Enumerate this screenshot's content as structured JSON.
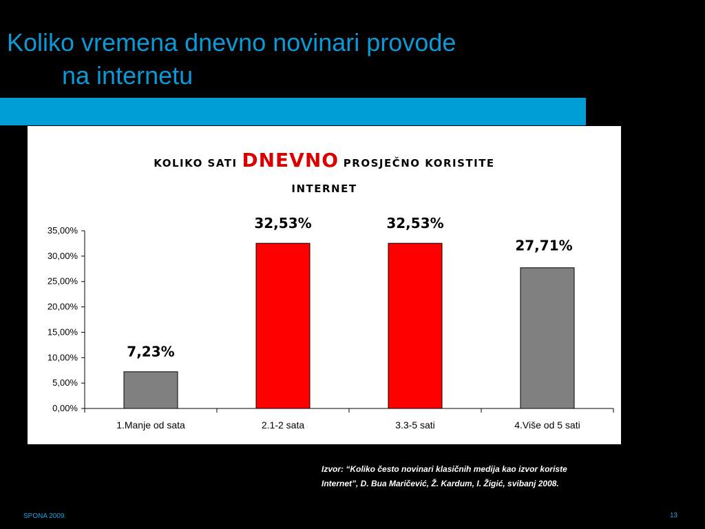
{
  "slide": {
    "title_line1": "Koliko vremena dnevno novinari provode",
    "title_line2": "na internetu",
    "source_line1": "Izvor: “Koliko često novinari klasičnih medija kao izvor koriste",
    "source_line2": "Internet”, D. Bua Maričević, Ž. Kardum, I. Žigić, svibanj 2008.",
    "footer_left": "SPONA 2009.",
    "page_number": "13"
  },
  "colors": {
    "title": "#0a9ad8",
    "accent_bar": "#009ed6",
    "gray_bar": "#808080",
    "red_bar": "#ff0000",
    "title_highlight": "#d80000"
  },
  "chart_data": {
    "type": "bar",
    "title_parts": [
      "KOLIKO SATI ",
      "DNEVNO",
      " PROSJEČNO KORISTITE",
      "INTERNET"
    ],
    "categories": [
      "1.Manje od sata",
      "2.1-2 sata",
      "3.3-5 sati",
      "4.Više od 5 sati"
    ],
    "values": [
      7.23,
      32.53,
      32.53,
      27.71
    ],
    "data_labels": [
      "7,23%",
      "32,53%",
      "32,53%",
      "27,71%"
    ],
    "bar_colors": [
      "#808080",
      "#ff0000",
      "#ff0000",
      "#808080"
    ],
    "y_ticks": [
      "0,00%",
      "5,00%",
      "10,00%",
      "15,00%",
      "20,00%",
      "25,00%",
      "30,00%",
      "35,00%"
    ],
    "ylim": [
      0,
      35
    ],
    "grid": false,
    "legend": "none"
  }
}
